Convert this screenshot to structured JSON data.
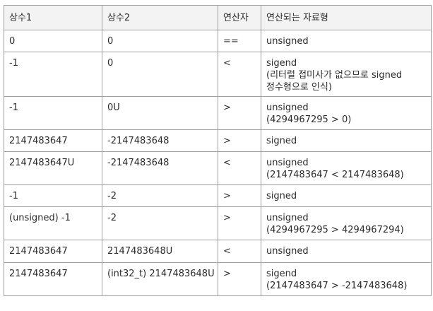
{
  "table": {
    "headers": [
      "상수1",
      "상수2",
      "연산자",
      "연산되는 자료형"
    ],
    "rows": [
      {
        "a": "0",
        "b": "0",
        "op": "==",
        "type": [
          "unsigned"
        ]
      },
      {
        "a": "-1",
        "b": "0",
        "op": "<",
        "type": [
          "sigend",
          "(리터럴 접미사가 없으므로 signed",
          "정수형으로 인식)"
        ]
      },
      {
        "a": "-1",
        "b": "0U",
        "op": ">",
        "type": [
          "unsigned",
          "(4294967295 > 0)"
        ]
      },
      {
        "a": "2147483647",
        "b": "-2147483648",
        "op": ">",
        "type": [
          "signed"
        ]
      },
      {
        "a": "2147483647U",
        "b": "-2147483648",
        "op": "<",
        "type": [
          "unsigned",
          "(2147483647 < 2147483648)"
        ]
      },
      {
        "a": "-1",
        "b": "-2",
        "op": ">",
        "type": [
          "signed"
        ]
      },
      {
        "a": "(unsigned) -1",
        "b": "-2",
        "op": ">",
        "type": [
          "unsigned",
          "(4294967295 > 4294967294)"
        ]
      },
      {
        "a": "2147483647",
        "b": "2147483648U",
        "op": "<",
        "type": [
          "unsigned"
        ]
      },
      {
        "a": "2147483647",
        "b": "(int32_t) 2147483648U",
        "op": ">",
        "type": [
          "sigend",
          "(2147483647 > -2147483648)"
        ]
      }
    ]
  }
}
